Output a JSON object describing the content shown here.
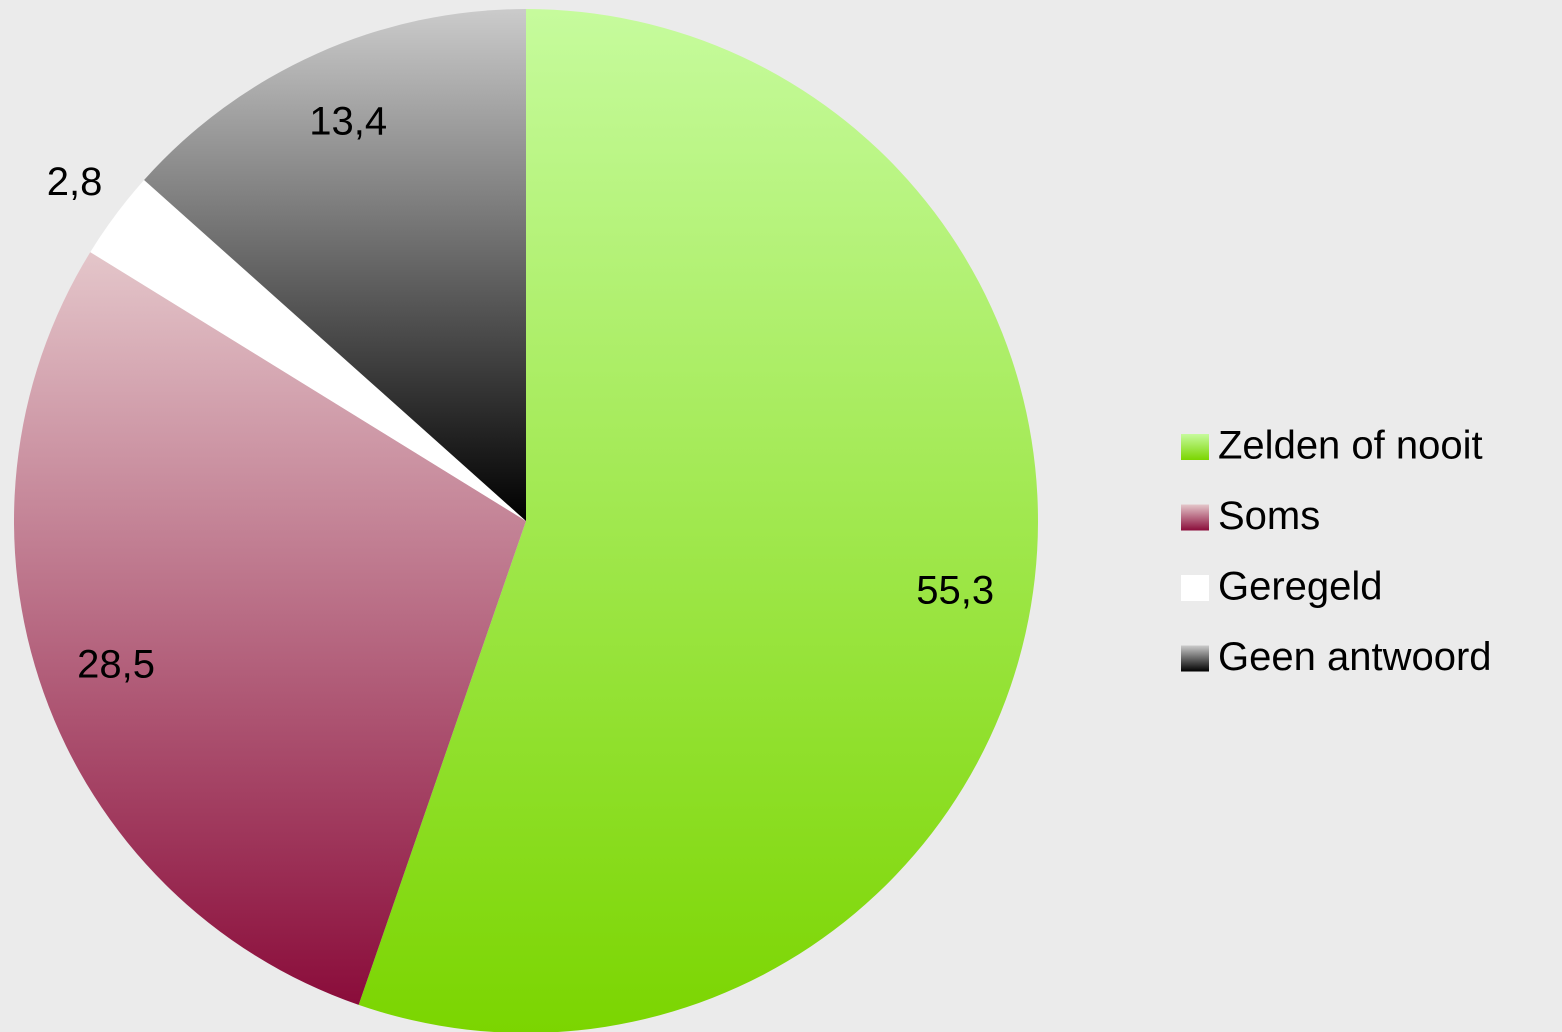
{
  "chart_data": {
    "type": "pie",
    "categories": [
      "Zelden of nooit",
      "Soms",
      "Geregeld",
      "Geen antwoord"
    ],
    "values": [
      55.3,
      28.5,
      2.8,
      13.4
    ],
    "value_labels": [
      "55,3",
      "28,5",
      "2,8",
      "13,4"
    ],
    "colors": [
      [
        "#c6fb9d",
        "#7bd500"
      ],
      [
        "#e4c6ca",
        "#8a0c3a"
      ],
      [
        "#ffffff",
        "#ffffff"
      ],
      [
        "#cbcbcb",
        "#000000"
      ]
    ],
    "legend": "right"
  }
}
